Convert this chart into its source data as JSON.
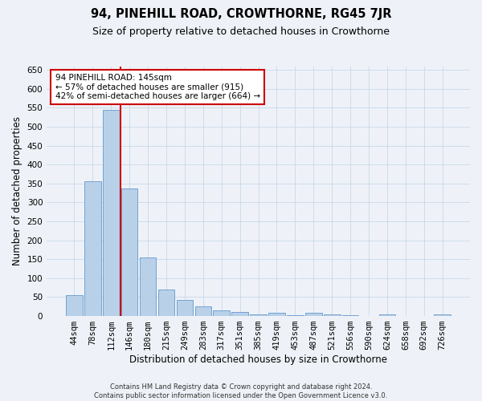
{
  "title": "94, PINEHILL ROAD, CROWTHORNE, RG45 7JR",
  "subtitle": "Size of property relative to detached houses in Crowthorne",
  "xlabel": "Distribution of detached houses by size in Crowthorne",
  "ylabel": "Number of detached properties",
  "footer_line1": "Contains HM Land Registry data © Crown copyright and database right 2024.",
  "footer_line2": "Contains public sector information licensed under the Open Government Licence v3.0.",
  "bin_labels": [
    "44sqm",
    "78sqm",
    "112sqm",
    "146sqm",
    "180sqm",
    "215sqm",
    "249sqm",
    "283sqm",
    "317sqm",
    "351sqm",
    "385sqm",
    "419sqm",
    "453sqm",
    "487sqm",
    "521sqm",
    "556sqm",
    "590sqm",
    "624sqm",
    "658sqm",
    "692sqm",
    "726sqm"
  ],
  "bar_values": [
    55,
    355,
    545,
    338,
    155,
    70,
    42,
    25,
    15,
    10,
    5,
    9,
    2,
    9,
    5,
    2,
    0,
    4,
    0,
    0,
    5
  ],
  "bar_color": "#b8d0e8",
  "bar_edge_color": "#6699cc",
  "grid_color": "#c8d8e8",
  "background_color": "#eef2f8",
  "subject_line_label": "94 PINEHILL ROAD: 145sqm",
  "annotation_line2": "← 57% of detached houses are smaller (915)",
  "annotation_line3": "42% of semi-detached houses are larger (664) →",
  "annotation_box_color": "#ffffff",
  "annotation_box_edge": "#cc0000",
  "subject_line_color": "#cc0000",
  "ylim": [
    0,
    660
  ],
  "yticks": [
    0,
    50,
    100,
    150,
    200,
    250,
    300,
    350,
    400,
    450,
    500,
    550,
    600,
    650
  ],
  "title_fontsize": 10.5,
  "subtitle_fontsize": 9,
  "axis_label_fontsize": 8.5,
  "tick_fontsize": 7.5,
  "footer_fontsize": 6
}
